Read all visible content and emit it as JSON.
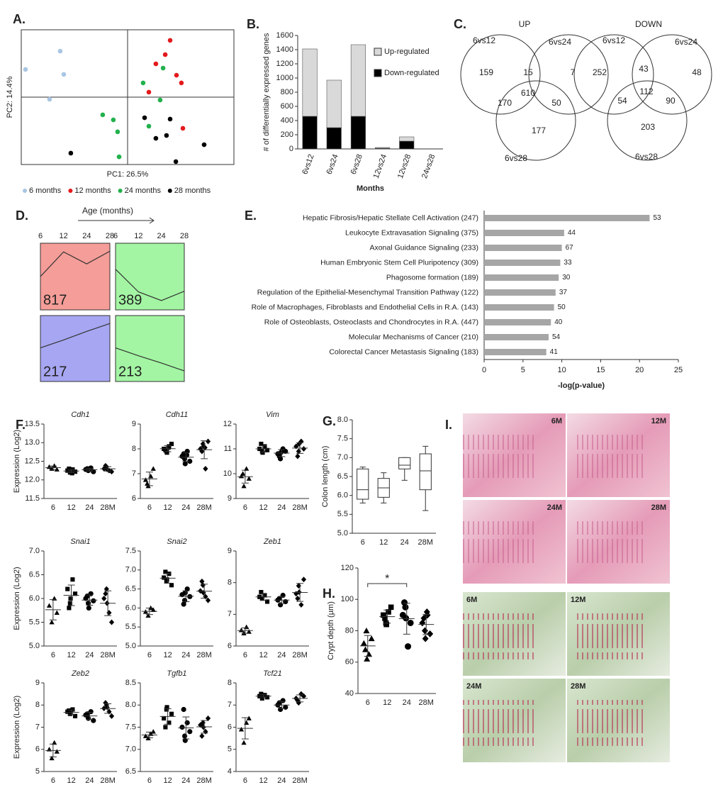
{
  "panel_labels": [
    "A.",
    "B.",
    "C.",
    "D.",
    "E.",
    "F.",
    "G.",
    "H.",
    "I."
  ],
  "chart_data": [
    {
      "type": "scatter",
      "xlabel": "PC1: 26.5%",
      "ylabel": "PC2: 14.4%",
      "xlim": [
        -50,
        50
      ],
      "ylim": [
        -35,
        35
      ],
      "series": [
        {
          "name": "6 months",
          "color": "#a9c6e3",
          "x": [
            -31.7,
            -48,
            -30,
            -36.7
          ],
          "y": [
            23.9,
            14.4,
            11.8,
            -1.1
          ]
        },
        {
          "name": "12 months",
          "color": "#e31a1c",
          "x": [
            20,
            17.7,
            13.3,
            23,
            25.3,
            10,
            26
          ],
          "y": [
            29.5,
            22.1,
            17.3,
            11.4,
            7.4,
            2.6,
            -16.2
          ]
        },
        {
          "name": "24 months",
          "color": "#22b14c",
          "x": [
            16.7,
            7.3,
            15.3,
            -11.7,
            -6.7,
            -4.7,
            10,
            -4
          ],
          "y": [
            15.1,
            7.4,
            -1.5,
            -9.2,
            -11.8,
            -18,
            -15.1,
            -31
          ]
        },
        {
          "name": "28 months",
          "color": "#000000",
          "x": [
            8,
            18.3,
            13.3,
            20,
            36,
            22.7,
            -26.7
          ],
          "y": [
            -10.7,
            -19.9,
            -21.4,
            -11.4,
            -24.7,
            -33.5,
            -29.1
          ]
        }
      ]
    },
    {
      "type": "stacked_bar",
      "ylabel": "# of differentially expressed genes",
      "xlabel": "Months",
      "categories": [
        "6vs12",
        "6vs24",
        "6vs28",
        "12vs24",
        "12vs28",
        "24vs28"
      ],
      "ylim": [
        0,
        1600
      ],
      "yticks": [
        0,
        200,
        400,
        600,
        800,
        1000,
        1200,
        1400,
        1600
      ],
      "series": [
        {
          "name": "Up-regulated",
          "color": "#d9d9d9",
          "values": [
            950,
            670,
            1010,
            10,
            60,
            0
          ]
        },
        {
          "name": "Down-regulated",
          "color": "#000000",
          "values": [
            460,
            300,
            460,
            10,
            110,
            0
          ]
        }
      ]
    },
    {
      "type": "hbar",
      "xlabel": "-log(p-value)",
      "color": "#a6a6a6",
      "categories": [
        "Hepatic Fibrosis/Hepatic Stellate Cell Activation (247)",
        "Leukocyte Extravasation Signaling (375)",
        "Axonal Guidance Signaling (233)",
        "Human Embryonic Stem Cell Pluripotency (309)",
        "Phagosome formation (189)",
        "Regulation of the Epithelial-Mesenchymal Transition Pathway (122)",
        "Role of Macrophages, Fibroblasts and Endothelial Cells in R.A. (143)",
        "Role of Osteoblasts, Osteoclasts and Chondrocytes in R.A. (447)",
        "Molecular Mechanisms of Cancer (210)",
        "Colorectal Cancer Metastasis Signaling (183)"
      ],
      "values": [
        21.3,
        10.3,
        10.0,
        9.8,
        9.6,
        9.2,
        9.0,
        8.6,
        8.3,
        8.0
      ],
      "bar_labels": [
        53,
        44,
        67,
        33,
        30,
        37,
        50,
        40,
        54,
        41
      ],
      "xlim": [
        0,
        25
      ],
      "xticks": [
        0,
        5,
        10,
        15,
        20,
        25
      ]
    },
    {
      "type": "dot",
      "title": "Cdh1",
      "ylabel": "Expression (Log2)",
      "categories": [
        "6",
        "12",
        "24",
        "28M"
      ],
      "markers": [
        "triangle",
        "square",
        "circle",
        "diamond"
      ],
      "ylim": [
        11.5,
        13.5
      ],
      "yticks": [
        11.5,
        {
          "value": 12,
          "label": "12.0"
        },
        12.5,
        {
          "value": 13,
          "label": "13.0"
        },
        13.5
      ],
      "values": [
        [
          12.35,
          12.3,
          12.38,
          12.28
        ],
        [
          12.25,
          12.2,
          12.28,
          12.22,
          12.3,
          12.24,
          12.18
        ],
        [
          12.28,
          12.25,
          12.32,
          12.22,
          12.3,
          12.27
        ],
        [
          12.3,
          12.35,
          12.25,
          12.22,
          12.38,
          12.28
        ]
      ]
    },
    {
      "type": "dot",
      "title": "Cdh11",
      "categories": [
        "6",
        "12",
        "24",
        "28M"
      ],
      "markers": [
        "triangle",
        "square",
        "circle",
        "diamond"
      ],
      "ylim": [
        6,
        9
      ],
      "yticks": [
        6,
        7,
        8,
        9
      ],
      "values": [
        [
          6.75,
          6.5,
          6.9,
          7.2,
          6.6
        ],
        [
          8.0,
          7.9,
          8.1,
          8.2,
          7.95,
          7.85,
          8.05
        ],
        [
          7.7,
          7.6,
          7.9,
          7.5,
          7.8,
          7.4,
          7.75
        ],
        [
          8.0,
          8.2,
          7.2,
          8.3,
          7.9,
          8.1,
          8.05
        ]
      ]
    },
    {
      "type": "dot",
      "title": "Vim",
      "categories": [
        "6",
        "12",
        "24",
        "28M"
      ],
      "markers": [
        "triangle",
        "square",
        "circle",
        "diamond"
      ],
      "ylim": [
        9,
        12
      ],
      "yticks": [
        9,
        10,
        11,
        12
      ],
      "values": [
        [
          9.9,
          9.5,
          10.2,
          9.8,
          10.0
        ],
        [
          11.0,
          10.9,
          11.1,
          10.95,
          11.2,
          10.85
        ],
        [
          10.8,
          10.6,
          11.0,
          10.9,
          10.7,
          10.85,
          10.95
        ],
        [
          11.1,
          10.9,
          11.3,
          11.0,
          10.7,
          11.2
        ]
      ]
    },
    {
      "type": "dot",
      "title": "Snai1",
      "ylabel": "Expression (Log2)",
      "categories": [
        "6",
        "12",
        "24",
        "28M"
      ],
      "markers": [
        "triangle",
        "square",
        "circle",
        "diamond"
      ],
      "ylim": [
        5,
        7
      ],
      "yticks": [
        {
          "value": 5,
          "label": "5.0"
        },
        5.5,
        {
          "value": 6,
          "label": "6.0"
        },
        6.5,
        {
          "value": 7,
          "label": "7.0"
        }
      ],
      "values": [
        [
          5.85,
          5.5,
          6.0,
          5.7
        ],
        [
          6.2,
          5.9,
          6.4,
          6.1,
          5.8,
          6.0
        ],
        [
          6.0,
          5.9,
          6.1,
          5.95,
          6.05,
          5.8
        ],
        [
          6.0,
          6.2,
          5.7,
          5.5,
          6.1,
          5.9
        ]
      ]
    },
    {
      "type": "dot",
      "title": "Snai2",
      "categories": [
        "6",
        "12",
        "24",
        "28M"
      ],
      "markers": [
        "triangle",
        "square",
        "circle",
        "diamond"
      ],
      "ylim": [
        5,
        7.5
      ],
      "yticks": [
        {
          "value": 5,
          "label": "5.0"
        },
        5.5,
        {
          "value": 6,
          "label": "6.0"
        },
        6.5,
        {
          "value": 7,
          "label": "7.0"
        },
        7.5
      ],
      "values": [
        [
          5.9,
          5.8,
          6.0,
          5.95
        ],
        [
          6.8,
          6.7,
          6.9,
          6.6,
          6.95,
          6.75
        ],
        [
          6.35,
          6.2,
          6.5,
          6.3,
          6.1,
          6.4
        ],
        [
          6.45,
          6.6,
          6.3,
          6.2,
          6.7,
          6.4
        ]
      ]
    },
    {
      "type": "dot",
      "title": "Zeb1",
      "categories": [
        "6",
        "12",
        "24",
        "28M"
      ],
      "markers": [
        "triangle",
        "square",
        "circle",
        "diamond"
      ],
      "ylim": [
        6,
        9
      ],
      "yticks": [
        6,
        7,
        8,
        9
      ],
      "values": [
        [
          6.5,
          6.4,
          6.6,
          6.45
        ],
        [
          7.55,
          7.5,
          7.6,
          7.4,
          7.7
        ],
        [
          7.45,
          7.3,
          7.6,
          7.4,
          7.5
        ],
        [
          7.65,
          7.9,
          7.3,
          8.1,
          7.5,
          7.7
        ]
      ]
    },
    {
      "type": "dot",
      "title": "Zeb2",
      "ylabel": "Expression (Log2)",
      "categories": [
        "6",
        "12",
        "24",
        "28M"
      ],
      "markers": [
        "triangle",
        "square",
        "circle",
        "diamond"
      ],
      "ylim": [
        5,
        9
      ],
      "yticks": [
        5,
        6,
        7,
        8,
        9
      ],
      "values": [
        [
          6.0,
          5.6,
          6.3,
          5.9
        ],
        [
          7.7,
          7.6,
          7.8,
          7.5,
          7.75,
          7.65
        ],
        [
          7.55,
          7.4,
          7.7,
          7.3,
          7.6
        ],
        [
          7.85,
          8.0,
          7.7,
          7.5,
          8.1,
          7.9
        ]
      ]
    },
    {
      "type": "dot",
      "title": "Tgfb1",
      "categories": [
        "6",
        "12",
        "24",
        "28M"
      ],
      "markers": [
        "triangle",
        "square",
        "circle",
        "diamond"
      ],
      "ylim": [
        6.5,
        8.5
      ],
      "yticks": [
        6.5,
        {
          "value": 7,
          "label": "7.0"
        },
        7.5,
        {
          "value": 8,
          "label": "8.0"
        },
        8.5
      ],
      "values": [
        [
          7.3,
          7.25,
          7.35,
          7.4
        ],
        [
          7.7,
          7.9,
          7.6,
          7.8,
          7.5,
          7.95
        ],
        [
          7.5,
          7.3,
          7.6,
          7.4,
          7.9,
          7.2
        ],
        [
          7.55,
          7.6,
          7.4,
          7.7,
          7.3,
          7.5
        ]
      ]
    },
    {
      "type": "dot",
      "title": "Tcf21",
      "categories": [
        "6",
        "12",
        "24",
        "28M"
      ],
      "markers": [
        "triangle",
        "square",
        "circle",
        "diamond"
      ],
      "ylim": [
        4,
        8
      ],
      "yticks": [
        4,
        5,
        6,
        7,
        8
      ],
      "values": [
        [
          5.9,
          5.3,
          6.2,
          6.4
        ],
        [
          7.4,
          7.3,
          7.45,
          7.35,
          7.5
        ],
        [
          7.0,
          6.8,
          7.2,
          6.9,
          7.1
        ],
        [
          7.3,
          7.1,
          7.5,
          7.4,
          7.2
        ]
      ]
    },
    {
      "type": "box",
      "ylabel": "Colon length (cm)",
      "categories": [
        "6",
        "12",
        "24",
        "28M"
      ],
      "ylim": [
        5,
        8
      ],
      "yticks": [
        {
          "value": 5,
          "label": "5.0"
        },
        5.5,
        {
          "value": 6,
          "label": "6.0"
        },
        6.5,
        {
          "value": 7,
          "label": "7.0"
        },
        7.5,
        {
          "value": 8,
          "label": "8.0"
        }
      ],
      "boxes": [
        {
          "min": 5.8,
          "q1": 5.9,
          "median": 6.15,
          "q3": 6.7,
          "max": 6.75
        },
        {
          "min": 5.8,
          "q1": 5.95,
          "median": 6.2,
          "q3": 6.45,
          "max": 6.6
        },
        {
          "min": 6.4,
          "q1": 6.7,
          "median": 6.8,
          "q3": 7.0,
          "max": 7.0
        },
        {
          "min": 5.6,
          "q1": 6.15,
          "median": 6.65,
          "q3": 7.1,
          "max": 7.3
        }
      ]
    },
    {
      "type": "dot",
      "ylabel": "Crypt depth (µm)",
      "annotation": "*",
      "categories": [
        "6",
        "12",
        "24",
        "28M"
      ],
      "markers": [
        "triangle",
        "square",
        "circle",
        "diamond"
      ],
      "ylim": [
        40,
        120
      ],
      "yticks": [
        40,
        60,
        80,
        100,
        120
      ],
      "values": [
        [
          72,
          80,
          65,
          75,
          68,
          62
        ],
        [
          90,
          85,
          92,
          95,
          88,
          84
        ],
        [
          90,
          95,
          70,
          85,
          98,
          88
        ],
        [
          85,
          80,
          90,
          78,
          88,
          75,
          92
        ]
      ]
    }
  ],
  "venn": [
    {
      "title": "UP",
      "sets": [
        "6vs12",
        "6vs24",
        "6vs28"
      ],
      "regions": [
        159,
        15,
        7,
        610,
        170,
        50,
        177
      ]
    },
    {
      "title": "DOWN",
      "sets": [
        "6vs12",
        "6vs24",
        "6vs28"
      ],
      "regions": [
        252,
        43,
        48,
        112,
        54,
        90,
        203
      ]
    }
  ],
  "trends": {
    "title": "Age (months)",
    "categories": [
      "6",
      "12",
      "24",
      "28"
    ],
    "clusters": [
      {
        "count": 817,
        "color": "#f59d98",
        "profile": [
          0.5,
          0.87,
          0.69,
          0.88
        ]
      },
      {
        "count": 389,
        "color": "#a3f5a3",
        "profile": [
          0.61,
          0.27,
          0.14,
          0.28
        ]
      },
      {
        "count": 217,
        "color": "#a6a6f2",
        "profile": [
          0.51,
          0.63,
          0.76,
          0.88
        ]
      },
      {
        "count": 213,
        "color": "#a3f5a3",
        "profile": [
          0.51,
          0.39,
          0.28,
          0.16
        ]
      }
    ]
  },
  "histology": {
    "he": [
      "6M",
      "12M",
      "24M",
      "28M"
    ],
    "sirius": [
      "6M",
      "12M",
      "24M",
      "28M"
    ]
  }
}
